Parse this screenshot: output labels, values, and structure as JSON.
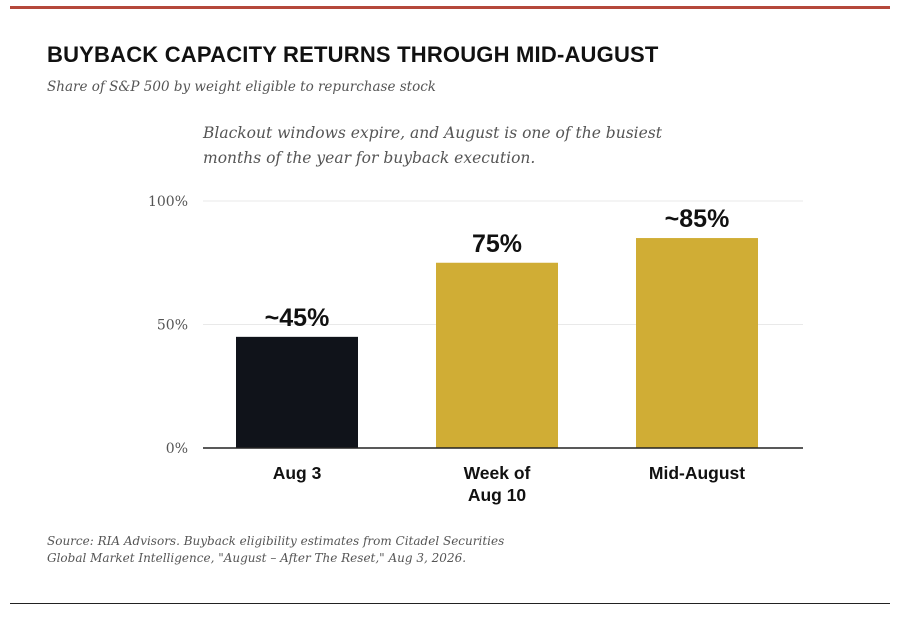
{
  "header": {
    "title": "BUYBACK CAPACITY RETURNS THROUGH MID-AUGUST",
    "subtitle": "Share of S&P 500 by weight eligible to repurchase stock"
  },
  "annotation": {
    "line1": "Blackout windows expire, and August is one of the busiest",
    "line2": "months of the year for buyback execution."
  },
  "footer": {
    "source_line1": "Source: RIA Advisors. Buyback eligibility estimates from Citadel Securities",
    "source_line2": "Global Market Intelligence, \"August – After The Reset,\" Aug 3, 2026."
  },
  "colors": {
    "accent_rule": "#b5483b",
    "bar_dark": "#10131a",
    "bar_gold": "#d0ad35",
    "grid": "#e9e9e9",
    "axis": "#222222"
  },
  "chart_data": {
    "type": "bar",
    "title": "BUYBACK CAPACITY RETURNS THROUGH MID-AUGUST",
    "subtitle": "Share of S&P 500 by weight eligible to repurchase stock",
    "categories": [
      [
        "Aug 3"
      ],
      [
        "Week of",
        "Aug 10"
      ],
      [
        "Mid-August"
      ]
    ],
    "values": [
      45,
      75,
      85
    ],
    "data_labels": [
      "~45%",
      "75%",
      "~85%"
    ],
    "bar_colors": [
      "#10131a",
      "#d0ad35",
      "#d0ad35"
    ],
    "ylim": [
      0,
      100
    ],
    "yticks": [
      0,
      50,
      100
    ],
    "ytick_labels": [
      "0%",
      "50%",
      "100%"
    ],
    "grid": true,
    "xlabel": "",
    "ylabel": ""
  }
}
